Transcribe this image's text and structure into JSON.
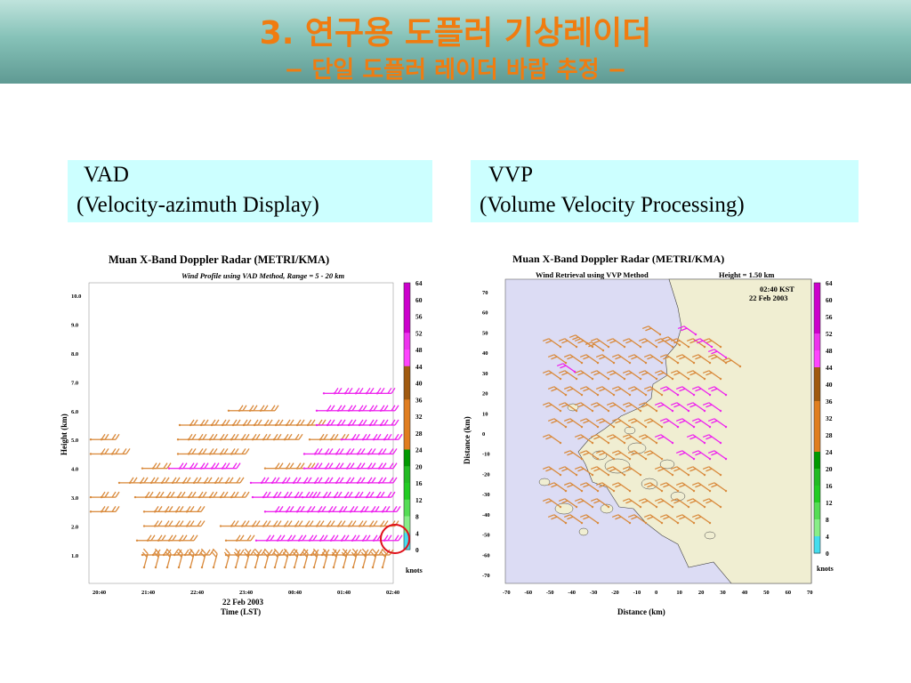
{
  "header": {
    "title": "3. 연구용 도플러 기상레이더",
    "subtitle": "− 단일 도플러 레이더 바람 추정 −"
  },
  "left_box": {
    "line1": "VAD",
    "line2": "(Velocity-azimuth Display)"
  },
  "right_box": {
    "line1": "VVP",
    "line2": "(Volume Velocity Processing)"
  },
  "vad_plot": {
    "title": "Muan X-Band Doppler Radar (METRI/KMA)",
    "subtitle": "Wind Profile using VAD Method,  Range = 5 - 20 km",
    "ylabel": "Height (km)",
    "yticks": [
      "10.0",
      "9.0",
      "8.0",
      "7.0",
      "6.0",
      "5.0",
      "4.0",
      "3.0",
      "2.0",
      "1.0"
    ],
    "xticks": [
      "20:40",
      "21:40",
      "22:40",
      "23:40",
      "00:40",
      "01:40",
      "02:40"
    ],
    "date": "22 Feb 2003",
    "xlabel": "Time (LST)"
  },
  "vvp_plot": {
    "title": "Muan X-Band Doppler Radar (METRI/KMA)",
    "subtitle": "Wind Retrieval using VVP Method",
    "height_label": "Height =  1.50 km",
    "time": "02:40 KST",
    "date": "22 Feb 2003",
    "ylabel": "Distance (km)",
    "xlabel": "Distance (km)",
    "ticks": [
      "-70",
      "-60",
      "-50",
      "-40",
      "-30",
      "-20",
      "-10",
      "0",
      "10",
      "20",
      "30",
      "40",
      "50",
      "60",
      "70"
    ]
  },
  "colorbar": {
    "labels": [
      "64",
      "60",
      "56",
      "52",
      "48",
      "44",
      "40",
      "36",
      "32",
      "28",
      "24",
      "20",
      "16",
      "12",
      "8",
      "4",
      "0"
    ],
    "unit": "knots",
    "colors": [
      "#cc00cc",
      "#cc00cc",
      "#cc00cc",
      "#ee33ee",
      "#ff44ff",
      "#a05a10",
      "#a05a10",
      "#e07e20",
      "#e07e20",
      "#e07e20",
      "#009900",
      "#22bb22",
      "#22cc22",
      "#55dd55",
      "#88ee88",
      "#44ddee"
    ]
  }
}
